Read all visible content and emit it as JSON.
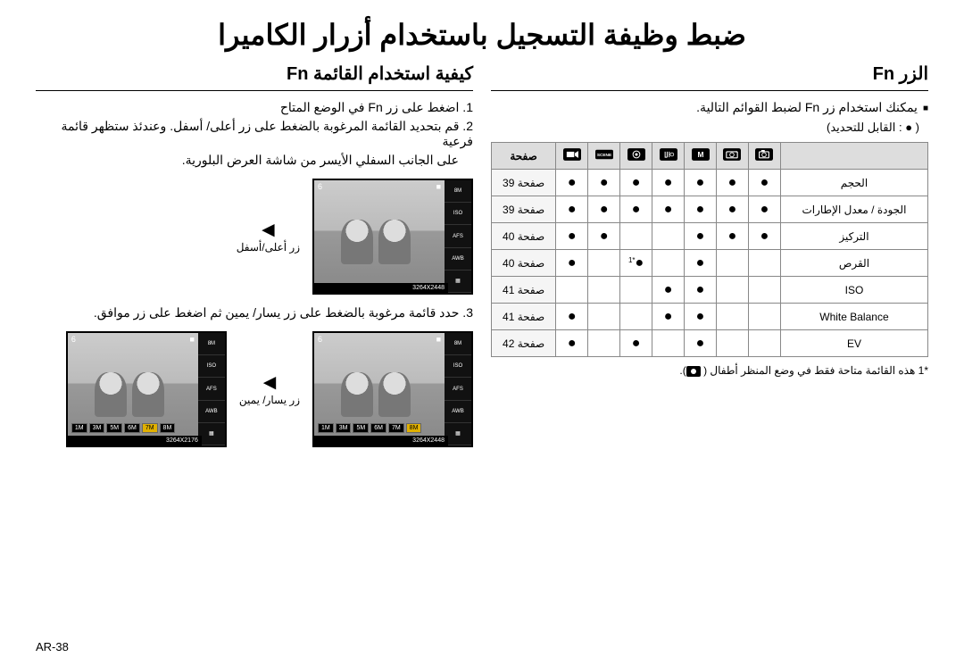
{
  "title": "ضبط وظيفة التسجيل باستخدام أزرار الكاميرا",
  "right_col": {
    "heading": "الزر Fn",
    "intro": "يمكنك استخدام زر Fn لضبط القوائم التالية.",
    "selectable": "( ● : القابل للتحديد)",
    "table": {
      "page_header": "صفحة",
      "rows": [
        {
          "label": "الحجم",
          "dots": [
            1,
            1,
            1,
            1,
            1,
            1,
            1
          ],
          "page": "صفحة 39"
        },
        {
          "label": "الجودة / معدل الإطارات",
          "dots": [
            1,
            1,
            1,
            1,
            1,
            1,
            1
          ],
          "page": "صفحة 39"
        },
        {
          "label": "التركيز",
          "dots": [
            1,
            1,
            1,
            0,
            0,
            1,
            1
          ],
          "page": "صفحة 40"
        },
        {
          "label": "القرص",
          "dots": [
            0,
            0,
            1,
            0,
            2,
            0,
            1
          ],
          "page": "صفحة 40"
        },
        {
          "label": "ISO",
          "dots": [
            0,
            0,
            1,
            1,
            0,
            0,
            0
          ],
          "page": "صفحة 41"
        },
        {
          "label": "White Balance",
          "dots": [
            0,
            0,
            1,
            1,
            0,
            0,
            1
          ],
          "page": "صفحة 41"
        },
        {
          "label": "EV",
          "dots": [
            0,
            0,
            1,
            0,
            1,
            0,
            1
          ],
          "page": "صفحة 42"
        }
      ]
    },
    "footnote": "*1  هذه القائمة متاحة فقط في وضع المنظر أطفال ( "
  },
  "left_col": {
    "heading": "كيفية استخدام القائمة Fn",
    "step1": "1. اضغط على زر Fn في الوضع المتاح",
    "step2a": "2. قم بتحديد القائمة المرغوبة بالضغط على زر أعلى/ أسفل. وعندئذ ستظهر قائمة فرعية",
    "step2b": "على الجانب السفلي الأيسر من شاشة العرض البلورية.",
    "caption1": "زر أعلى/أسفل",
    "step3": "3. حدد قائمة مرغوبة بالضغط على زر يسار/ يمين ثم اضغط على زر موافق.",
    "caption2": "زر يسار/ يمين"
  },
  "page_number": "AR-38",
  "camera": {
    "top_count": "6",
    "sizes": [
      "8M",
      "7M",
      "6M",
      "5M",
      "3M",
      "1M"
    ],
    "res1": "3264X2448",
    "res2": "3264X2176",
    "sideicons": [
      "8M",
      "ISO",
      "AFS",
      "AWB",
      "▦"
    ]
  }
}
